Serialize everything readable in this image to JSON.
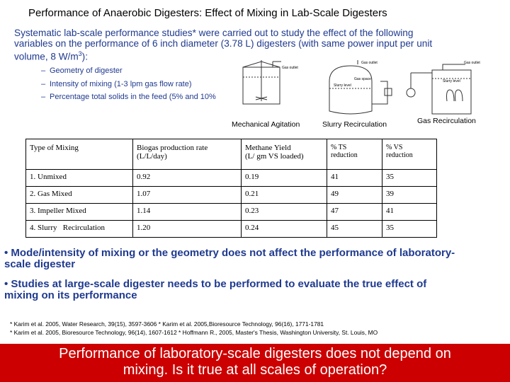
{
  "title": "Performance of Anaerobic Digesters: Effect of Mixing in Lab-Scale Digesters",
  "intro": {
    "line1": "Systematic lab-scale performance studies* were carried out to study the effect of the following",
    "line2": "variables on the performance of 6 inch diameter (3.78 L) digesters (with same power input per unit",
    "line3_pre": "volume, 8 W/m",
    "line3_sup": "3",
    "line3_post": "):"
  },
  "variables": [
    "Geometry of digester",
    "Intensity of mixing (1-3 lpm gas flow rate)",
    "Percentage total solids in the feed (5% and 10%"
  ],
  "figure": {
    "labels": [
      "Mechanical Agitation",
      "Slurry Recirculation",
      "Gas Recirculation"
    ],
    "small_labels": [
      "Gas outlet",
      "Gas outlet",
      "Slurry level",
      "Gas space",
      "Gas outlet",
      "Slurry level"
    ]
  },
  "table": {
    "headers": [
      [
        "Type of Mixing",
        ""
      ],
      [
        "Biogas production rate",
        "(L/L/day)"
      ],
      [
        "Methane Yield",
        "(L/ gm VS loaded)"
      ],
      [
        "% TS",
        "reduction"
      ],
      [
        "% VS",
        "reduction"
      ]
    ],
    "rows": [
      [
        "1. Unmixed",
        "0.92",
        "0.19",
        "41",
        "35"
      ],
      [
        "2. Gas Mixed",
        "1.07",
        "0.21",
        "49",
        "39"
      ],
      [
        "3. Impeller Mixed",
        "1.14",
        "0.23",
        "47",
        "41"
      ],
      [
        "4. Slurry   Recirculation",
        "1.20",
        "0.24",
        "45",
        "35"
      ]
    ]
  },
  "findings": [
    [
      "• Mode/intensity of mixing or the geometry does not affect the performance of laboratory-",
      "scale digester"
    ],
    [
      "• Studies at large-scale digester needs to  be performed to evaluate the true effect of",
      "mixing on its performance"
    ]
  ],
  "references": [
    "* Karim et al. 2005, Water Research, 39(15),  3597-3606 * Karim et al. 2005,Bioresource Technology,  96(16),  1771-1781",
    "* Karim et al. 2005, Bioresource Technology,  96(14),  1607-1612 * Hoffmann R., 2005, Master's Thesis, Washington University, St. Louis, MO"
  ],
  "banner": {
    "line1": "Performance of laboratory-scale digesters does not depend on",
    "line2": "mixing. Is it true at all scales of operation?"
  },
  "colors": {
    "text_blue": "#1f3a8f",
    "banner_red": "#cc0000",
    "banner_text": "#ffffff"
  }
}
